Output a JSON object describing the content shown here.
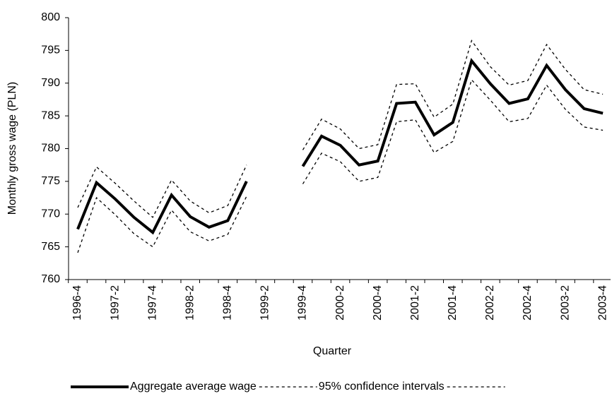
{
  "chart_data": {
    "type": "line",
    "x_label": "Quarter",
    "y_label": "Monthly gross wage (PLN)",
    "categories": [
      "1996-4",
      null,
      "1997-2",
      null,
      "1997-4",
      null,
      "1998-2",
      null,
      "1998-4",
      null,
      "1999-2",
      null,
      "1999-4",
      null,
      "2000-2",
      null,
      "2000-4",
      null,
      "2001-2",
      null,
      "2001-4",
      null,
      "2002-2",
      null,
      "2002-4",
      null,
      "2003-2",
      null,
      "2003-4"
    ],
    "series": [
      {
        "name": "Aggregate average wage",
        "color": "#000000",
        "style": "solid",
        "values": [
          767.7,
          774.8,
          772.3,
          769.5,
          767.2,
          772.9,
          769.6,
          768.0,
          769.0,
          775.0,
          null,
          null,
          777.3,
          781.9,
          780.5,
          777.5,
          778.1,
          786.9,
          787.1,
          782.1,
          784.0,
          793.4,
          789.9,
          786.9,
          787.6,
          792.7,
          789.0,
          786.1,
          785.4
        ]
      },
      {
        "name": "95% confidence intervals",
        "color": "#000000",
        "style": "dashed",
        "values": [
          771.0,
          777.2,
          774.7,
          772.0,
          769.5,
          775.2,
          772.0,
          770.2,
          771.3,
          777.5,
          null,
          null,
          779.8,
          784.5,
          783.0,
          780.0,
          780.6,
          789.8,
          789.9,
          784.8,
          786.8,
          796.5,
          792.5,
          789.7,
          790.4,
          795.9,
          792.1,
          789.0,
          788.3
        ]
      },
      {
        "color": "#000000",
        "style": "dashed",
        "values": [
          764.1,
          772.5,
          769.9,
          767.0,
          765.0,
          770.6,
          767.3,
          765.9,
          766.9,
          772.7,
          null,
          null,
          774.6,
          779.3,
          778.0,
          775.0,
          775.6,
          784.1,
          784.4,
          779.4,
          781.1,
          790.5,
          787.4,
          784.1,
          784.6,
          789.7,
          786.0,
          783.3,
          782.8
        ]
      }
    ],
    "ylim": [
      760,
      800
    ],
    "yticks": [
      760,
      765,
      770,
      775,
      780,
      785,
      790,
      795,
      800
    ],
    "grid": false,
    "legend": "bottom"
  }
}
